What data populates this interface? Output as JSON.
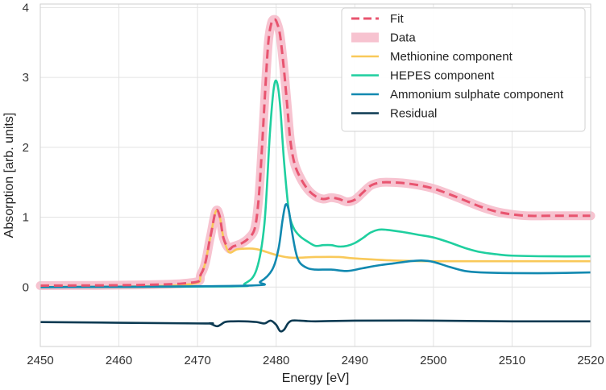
{
  "chart_data": {
    "type": "line",
    "title": "",
    "xlabel": "Energy [eV]",
    "ylabel": "Absorption [arb. units]",
    "xlim": [
      2450,
      2520
    ],
    "ylim": [
      -0.85,
      4.05
    ],
    "xticks": [
      2450,
      2460,
      2470,
      2480,
      2490,
      2500,
      2510,
      2520
    ],
    "xtick_labels": [
      "2450",
      "2460",
      "2470",
      "2480",
      "2490",
      "2500",
      "2510",
      "2520"
    ],
    "yticks": [
      0,
      1,
      2,
      3,
      4
    ],
    "ytick_labels": [
      "0",
      "1",
      "2",
      "3",
      "4"
    ],
    "grid": true,
    "legend_position": "top-right",
    "series": [
      {
        "name": "Data",
        "color": "#f6b8c8",
        "style": "thick",
        "x": [
          2450,
          2468,
          2470.5,
          2471.6,
          2472.3,
          2472.8,
          2473.3,
          2474,
          2474.5,
          2475.5,
          2476.5,
          2477.3,
          2477.8,
          2478.2,
          2478.6,
          2479,
          2479.4,
          2479.8,
          2480.1,
          2480.5,
          2481,
          2481.4,
          2481.8,
          2482.3,
          2483,
          2484,
          2485,
          2486,
          2487,
          2488,
          2489,
          2490,
          2491,
          2492,
          2493,
          2494,
          2496,
          2498,
          2500,
          2502,
          2504,
          2506,
          2508,
          2510,
          2512,
          2515,
          2520
        ],
        "values": [
          0.02,
          0.05,
          0.2,
          0.7,
          1.08,
          1.02,
          0.7,
          0.55,
          0.58,
          0.62,
          0.7,
          0.85,
          1.3,
          2.0,
          2.8,
          3.5,
          3.78,
          3.83,
          3.78,
          3.6,
          3.1,
          2.6,
          2.1,
          1.78,
          1.58,
          1.4,
          1.3,
          1.26,
          1.28,
          1.26,
          1.22,
          1.25,
          1.35,
          1.45,
          1.49,
          1.5,
          1.49,
          1.46,
          1.41,
          1.33,
          1.24,
          1.15,
          1.08,
          1.04,
          1.02,
          1.02,
          1.02
        ]
      },
      {
        "name": "Fit",
        "color": "#e8546f",
        "style": "dashed",
        "x": [
          2450,
          2468,
          2470.5,
          2471.6,
          2472.3,
          2472.8,
          2473.3,
          2474,
          2474.5,
          2475.5,
          2476.5,
          2477.3,
          2477.8,
          2478.2,
          2478.6,
          2479,
          2479.4,
          2479.8,
          2480.1,
          2480.5,
          2481,
          2481.4,
          2481.8,
          2482.3,
          2483,
          2484,
          2485,
          2486,
          2487,
          2488,
          2489,
          2490,
          2491,
          2492,
          2493,
          2494,
          2496,
          2498,
          2500,
          2502,
          2504,
          2506,
          2508,
          2510,
          2512,
          2515,
          2520
        ],
        "values": [
          0.02,
          0.05,
          0.2,
          0.7,
          1.08,
          1.02,
          0.7,
          0.55,
          0.58,
          0.62,
          0.7,
          0.85,
          1.3,
          2.0,
          2.8,
          3.5,
          3.78,
          3.83,
          3.78,
          3.6,
          3.1,
          2.6,
          2.1,
          1.78,
          1.58,
          1.4,
          1.3,
          1.26,
          1.28,
          1.26,
          1.22,
          1.25,
          1.35,
          1.45,
          1.49,
          1.5,
          1.49,
          1.46,
          1.41,
          1.33,
          1.24,
          1.15,
          1.08,
          1.04,
          1.02,
          1.02,
          1.02
        ]
      },
      {
        "name": "Methionine component",
        "color": "#f9c95a",
        "style": "solid",
        "x": [
          2450,
          2468,
          2470.5,
          2471.6,
          2472.3,
          2472.8,
          2473.3,
          2474,
          2475,
          2476,
          2477,
          2478,
          2480,
          2482,
          2485,
          2488,
          2490,
          2495,
          2500,
          2510,
          2520
        ],
        "values": [
          0.0,
          0.03,
          0.2,
          0.7,
          1.08,
          1.02,
          0.7,
          0.5,
          0.54,
          0.55,
          0.55,
          0.53,
          0.46,
          0.42,
          0.43,
          0.43,
          0.41,
          0.38,
          0.37,
          0.37,
          0.37
        ]
      },
      {
        "name": "HEPES component",
        "color": "#1fcf9f",
        "style": "solid",
        "x": [
          2450,
          2474,
          2476,
          2477.5,
          2478.5,
          2479.2,
          2479.7,
          2480.1,
          2480.5,
          2481,
          2481.6,
          2482.2,
          2483,
          2484,
          2485,
          2486,
          2487,
          2488,
          2489,
          2490,
          2491,
          2492,
          2493,
          2494,
          2496,
          2498,
          2500,
          2502,
          2504,
          2506,
          2508,
          2510,
          2515,
          2520
        ],
        "values": [
          0.0,
          0.01,
          0.05,
          0.25,
          0.9,
          2.2,
          2.85,
          2.93,
          2.6,
          1.8,
          1.1,
          0.85,
          0.73,
          0.65,
          0.59,
          0.6,
          0.6,
          0.58,
          0.59,
          0.63,
          0.7,
          0.78,
          0.82,
          0.82,
          0.79,
          0.75,
          0.71,
          0.64,
          0.56,
          0.5,
          0.47,
          0.45,
          0.44,
          0.44
        ]
      },
      {
        "name": "Ammonium sulphate component",
        "color": "#1289b0",
        "style": "solid",
        "x": [
          2450,
          2476,
          2478,
          2479.5,
          2480.3,
          2480.8,
          2481.2,
          2481.6,
          2482,
          2482.5,
          2483,
          2484,
          2485,
          2487,
          2489,
          2491,
          2493,
          2495,
          2497,
          2498.5,
          2500,
          2502,
          2504,
          2506,
          2510,
          2515,
          2520
        ],
        "values": [
          0.0,
          0.02,
          0.08,
          0.25,
          0.55,
          0.95,
          1.18,
          1.1,
          0.8,
          0.5,
          0.35,
          0.27,
          0.25,
          0.25,
          0.23,
          0.27,
          0.31,
          0.34,
          0.37,
          0.38,
          0.36,
          0.29,
          0.23,
          0.21,
          0.2,
          0.2,
          0.21
        ]
      },
      {
        "name": "Residual",
        "color": "#0c3a52",
        "style": "solid",
        "x": [
          2450,
          2470,
          2471.5,
          2472.5,
          2473.5,
          2474.5,
          2476,
          2477.5,
          2478.5,
          2479.3,
          2480,
          2480.5,
          2481,
          2481.5,
          2482,
          2483,
          2485,
          2490,
          2500,
          2510,
          2520
        ],
        "values": [
          -0.5,
          -0.52,
          -0.52,
          -0.56,
          -0.5,
          -0.49,
          -0.49,
          -0.5,
          -0.52,
          -0.48,
          -0.54,
          -0.63,
          -0.61,
          -0.52,
          -0.48,
          -0.48,
          -0.49,
          -0.48,
          -0.48,
          -0.49,
          -0.49
        ]
      }
    ],
    "legend_order": [
      "Fit",
      "Data",
      "Methionine component",
      "HEPES component",
      "Ammonium sulphate component",
      "Residual"
    ]
  }
}
